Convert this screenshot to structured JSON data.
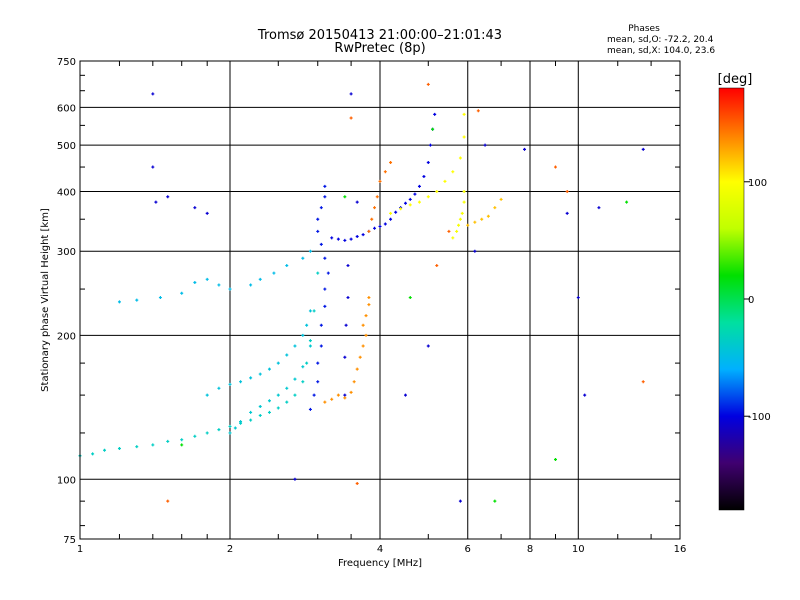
{
  "chart_data": {
    "type": "scatter",
    "title": "Tromsø 20150413 21:00:00–21:01:43",
    "subtitle": "RwPretec (8p)",
    "xlabel": "Frequency [MHz]",
    "ylabel": "Stationary phase Virtual Height [km]",
    "x_scale": "log",
    "y_scale": "log",
    "xlim": [
      1,
      16
    ],
    "ylim": [
      75,
      750
    ],
    "x_ticks": [
      1,
      2,
      4,
      6,
      8,
      10,
      16
    ],
    "x_tick_labels": [
      "1",
      "2",
      "4",
      "6",
      "8",
      "10",
      "16"
    ],
    "y_ticks": [
      75,
      100,
      200,
      300,
      400,
      500,
      600,
      750
    ],
    "y_tick_labels": [
      "75",
      "100",
      "200",
      "300",
      "400",
      "500",
      "600",
      "750"
    ],
    "grid": true,
    "stats": {
      "heading": "Phases",
      "line_o": "mean, sd,O: -72.2, 20.4",
      "line_x": "mean, sd,X: 104.0, 23.6"
    },
    "colorbar": {
      "label": "[deg]",
      "min": -180,
      "max": 180,
      "ticks": [
        100,
        0,
        -100
      ],
      "tick_labels": [
        "100",
        "0",
        "-100"
      ],
      "scale_colors": [
        "#000000",
        "#400070",
        "#0000e0",
        "#00b0ff",
        "#00e0a0",
        "#00e000",
        "#c0ff00",
        "#ffff00",
        "#ff8000",
        "#ff0000"
      ]
    },
    "series": [
      {
        "phase": -35,
        "x": [
          1.0,
          1.06,
          1.12,
          1.2,
          1.3,
          1.4,
          1.5,
          1.6,
          1.7,
          1.8,
          1.9,
          2.0,
          2.1,
          2.2,
          2.3,
          2.4,
          2.5,
          2.6,
          2.7,
          2.8,
          2.85,
          2.9,
          2.95,
          3.0
        ],
        "y": [
          112,
          113,
          115,
          116,
          117,
          118,
          120,
          121,
          123,
          125,
          127,
          129,
          131,
          133,
          136,
          138,
          141,
          145,
          150,
          160,
          175,
          195,
          225,
          270
        ]
      },
      {
        "phase": -40,
        "x": [
          2.0,
          2.05,
          2.1,
          2.2,
          2.3,
          2.4,
          2.5,
          2.6,
          2.7,
          2.8,
          2.9
        ],
        "y": [
          125,
          128,
          132,
          138,
          142,
          146,
          150,
          155,
          162,
          172,
          190
        ]
      },
      {
        "phase": -45,
        "x": [
          1.8,
          1.9,
          2.0,
          2.1,
          2.2,
          2.3,
          2.4,
          2.5,
          2.6,
          2.7,
          2.8,
          2.85,
          2.9
        ],
        "y": [
          150,
          155,
          158,
          160,
          163,
          166,
          170,
          175,
          182,
          190,
          200,
          210,
          225
        ]
      },
      {
        "phase": -50,
        "x": [
          1.2,
          1.3,
          1.45,
          1.6,
          1.7,
          1.8,
          1.9,
          2.0,
          2.2,
          2.3,
          2.45,
          2.6,
          2.8,
          2.9
        ],
        "y": [
          235,
          237,
          240,
          245,
          258,
          262,
          255,
          250,
          255,
          262,
          270,
          280,
          290,
          300
        ]
      },
      {
        "phase": -95,
        "x": [
          2.9,
          2.95,
          3.0,
          3.0,
          3.05,
          3.05,
          3.1,
          3.1,
          3.15,
          3.1,
          3.05,
          3.0,
          3.0,
          3.05,
          3.1,
          3.1
        ],
        "y": [
          140,
          150,
          160,
          175,
          190,
          210,
          230,
          250,
          270,
          290,
          310,
          330,
          350,
          370,
          390,
          410
        ]
      },
      {
        "phase": -100,
        "x": [
          3.2,
          3.3,
          3.4,
          3.5,
          3.6,
          3.7,
          3.8,
          3.9,
          4.0,
          4.1,
          4.2,
          4.3,
          4.4,
          4.5,
          4.6,
          4.7,
          4.8,
          4.9,
          5.0,
          5.05,
          5.1,
          5.15
        ],
        "y": [
          320,
          318,
          316,
          318,
          322,
          325,
          330,
          335,
          338,
          342,
          350,
          362,
          370,
          378,
          385,
          395,
          410,
          430,
          460,
          500,
          540,
          580
        ]
      },
      {
        "phase": -105,
        "x": [
          3.4,
          3.4,
          3.42,
          3.45,
          3.45
        ],
        "y": [
          150,
          180,
          210,
          240,
          280
        ]
      },
      {
        "phase": 135,
        "x": [
          3.1,
          3.2,
          3.3,
          3.4,
          3.5,
          3.55,
          3.6,
          3.65,
          3.7,
          3.75,
          3.7,
          3.75,
          3.8,
          3.8
        ],
        "y": [
          145,
          147,
          150,
          148,
          152,
          160,
          170,
          180,
          190,
          200,
          210,
          220,
          232,
          240
        ]
      },
      {
        "phase": 145,
        "x": [
          3.8,
          3.85,
          3.9,
          3.95,
          4.0,
          4.1,
          4.2
        ],
        "y": [
          330,
          350,
          370,
          390,
          420,
          440,
          460
        ]
      },
      {
        "phase": 100,
        "x": [
          4.2,
          4.4,
          4.6,
          4.8,
          5.0,
          5.2,
          5.4,
          5.6,
          5.8,
          5.9,
          5.9
        ],
        "y": [
          360,
          368,
          375,
          380,
          390,
          400,
          420,
          440,
          470,
          520,
          580
        ]
      },
      {
        "phase": 95,
        "x": [
          5.6,
          5.7,
          5.75,
          5.8,
          5.85,
          5.9,
          5.9
        ],
        "y": [
          320,
          330,
          340,
          350,
          360,
          380,
          400
        ]
      },
      {
        "phase": 120,
        "x": [
          6.0,
          6.2,
          6.4,
          6.6,
          6.8,
          7.0
        ],
        "y": [
          340,
          345,
          350,
          355,
          370,
          385
        ]
      },
      {
        "phase": -105,
        "x": [
          1.4,
          1.4,
          1.42,
          1.5,
          1.7,
          1.8,
          2.7,
          3.5,
          3.6,
          4.5,
          5.0,
          5.8,
          6.2,
          6.5,
          7.8,
          9.5,
          10.0,
          10.3,
          11.0,
          13.5
        ],
        "y": [
          640,
          450,
          380,
          390,
          370,
          360,
          100,
          640,
          380,
          150,
          190,
          90,
          300,
          500,
          490,
          360,
          240,
          150,
          370,
          490
        ]
      },
      {
        "phase": 150,
        "x": [
          1.5,
          3.5,
          3.6,
          5.0,
          5.2,
          5.5,
          6.3,
          9.0,
          9.5,
          13.5
        ],
        "y": [
          90,
          570,
          98,
          670,
          280,
          330,
          590,
          450,
          400,
          160
        ]
      },
      {
        "phase": 20,
        "x": [
          1.6,
          3.4,
          4.6,
          5.1,
          6.8,
          9.0,
          12.5
        ],
        "y": [
          118,
          390,
          240,
          540,
          90,
          110,
          380
        ]
      }
    ]
  }
}
